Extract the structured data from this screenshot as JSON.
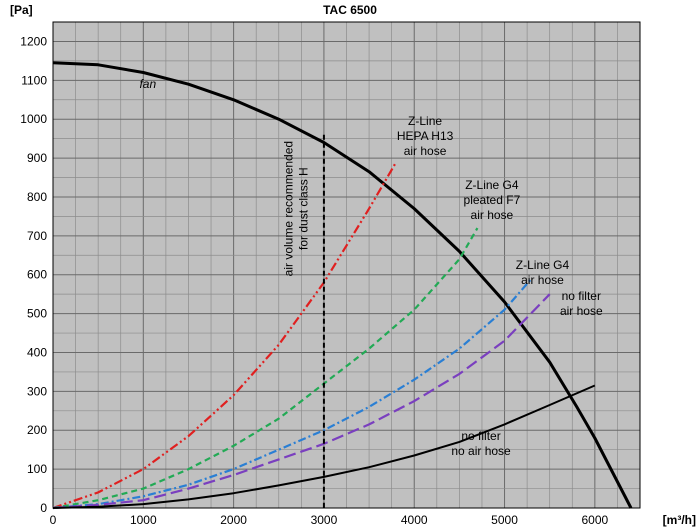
{
  "chart_data": {
    "type": "line",
    "title": "TAC 6500",
    "ylabel": "[Pa]",
    "xlabel": "[m³/h]",
    "xlim": [
      0,
      6500
    ],
    "ylim": [
      0,
      1250
    ],
    "x_ticks": [
      "0",
      "1000",
      "2000",
      "3000",
      "4000",
      "5000",
      "6000"
    ],
    "y_ticks": [
      "0",
      "100",
      "200",
      "300",
      "400",
      "500",
      "600",
      "700",
      "800",
      "900",
      "1000",
      "1100",
      "1200"
    ],
    "grid": true,
    "grid_minor_x": 250,
    "grid_minor_y": 50,
    "series": [
      {
        "name": "fan",
        "color": "#000000",
        "style": "solid",
        "x": [
          0,
          500,
          1000,
          1500,
          2000,
          2500,
          3000,
          3500,
          4000,
          4500,
          5000,
          5500,
          5800,
          6000,
          6200,
          6400
        ],
        "y": [
          1145,
          1140,
          1120,
          1090,
          1050,
          1000,
          940,
          865,
          770,
          660,
          530,
          375,
          260,
          180,
          90,
          0
        ]
      },
      {
        "name": "Z-Line HEPA H13 air hose",
        "color": "#e02020",
        "style": "dashdotdot",
        "x": [
          0,
          500,
          1000,
          1500,
          2000,
          2500,
          3000,
          3500,
          3800
        ],
        "y": [
          0,
          40,
          100,
          185,
          290,
          420,
          580,
          770,
          890
        ]
      },
      {
        "name": "Z-Line G4 pleated F7 air hose",
        "color": "#22aa55",
        "style": "dash",
        "x": [
          0,
          500,
          1000,
          1500,
          2000,
          2500,
          3000,
          3500,
          4000,
          4500,
          4700
        ],
        "y": [
          0,
          20,
          50,
          100,
          160,
          230,
          320,
          410,
          510,
          640,
          720
        ]
      },
      {
        "name": "Z-Line G4 air hose",
        "color": "#2a7fd4",
        "style": "dashdot",
        "x": [
          0,
          500,
          1000,
          1500,
          2000,
          2500,
          3000,
          3500,
          4000,
          4500,
          5000,
          5300
        ],
        "y": [
          0,
          10,
          30,
          60,
          100,
          150,
          200,
          260,
          330,
          410,
          510,
          590
        ]
      },
      {
        "name": "no filter air hose",
        "color": "#7a3fbf",
        "style": "longdash",
        "x": [
          0,
          500,
          1000,
          1500,
          2000,
          2500,
          3000,
          3500,
          4000,
          4500,
          5000,
          5500
        ],
        "y": [
          0,
          8,
          20,
          50,
          85,
          125,
          165,
          215,
          275,
          345,
          430,
          550
        ]
      },
      {
        "name": "no filter no air hose",
        "color": "#000000",
        "style": "solid-thin",
        "x": [
          0,
          500,
          1000,
          1500,
          2000,
          2500,
          3000,
          3500,
          4000,
          4500,
          5000,
          5500,
          6000
        ],
        "y": [
          0,
          3,
          10,
          22,
          38,
          58,
          80,
          105,
          135,
          170,
          215,
          265,
          315
        ]
      }
    ],
    "vline": {
      "x": 3000,
      "y_top": 960
    },
    "annotations": {
      "fan": "fan",
      "hepa": [
        "Z-Line",
        "HEPA H13",
        "air hose"
      ],
      "f7": [
        "Z-Line G4",
        "pleated F7",
        "air hose"
      ],
      "g4": [
        "Z-Line G4",
        "air hose"
      ],
      "nofilter_hose": [
        "no filter",
        "air hose"
      ],
      "nofilter_nohose": [
        "no filter",
        "no air hose"
      ],
      "vline_label": [
        "air volume recommended",
        "for dust class H"
      ]
    }
  }
}
